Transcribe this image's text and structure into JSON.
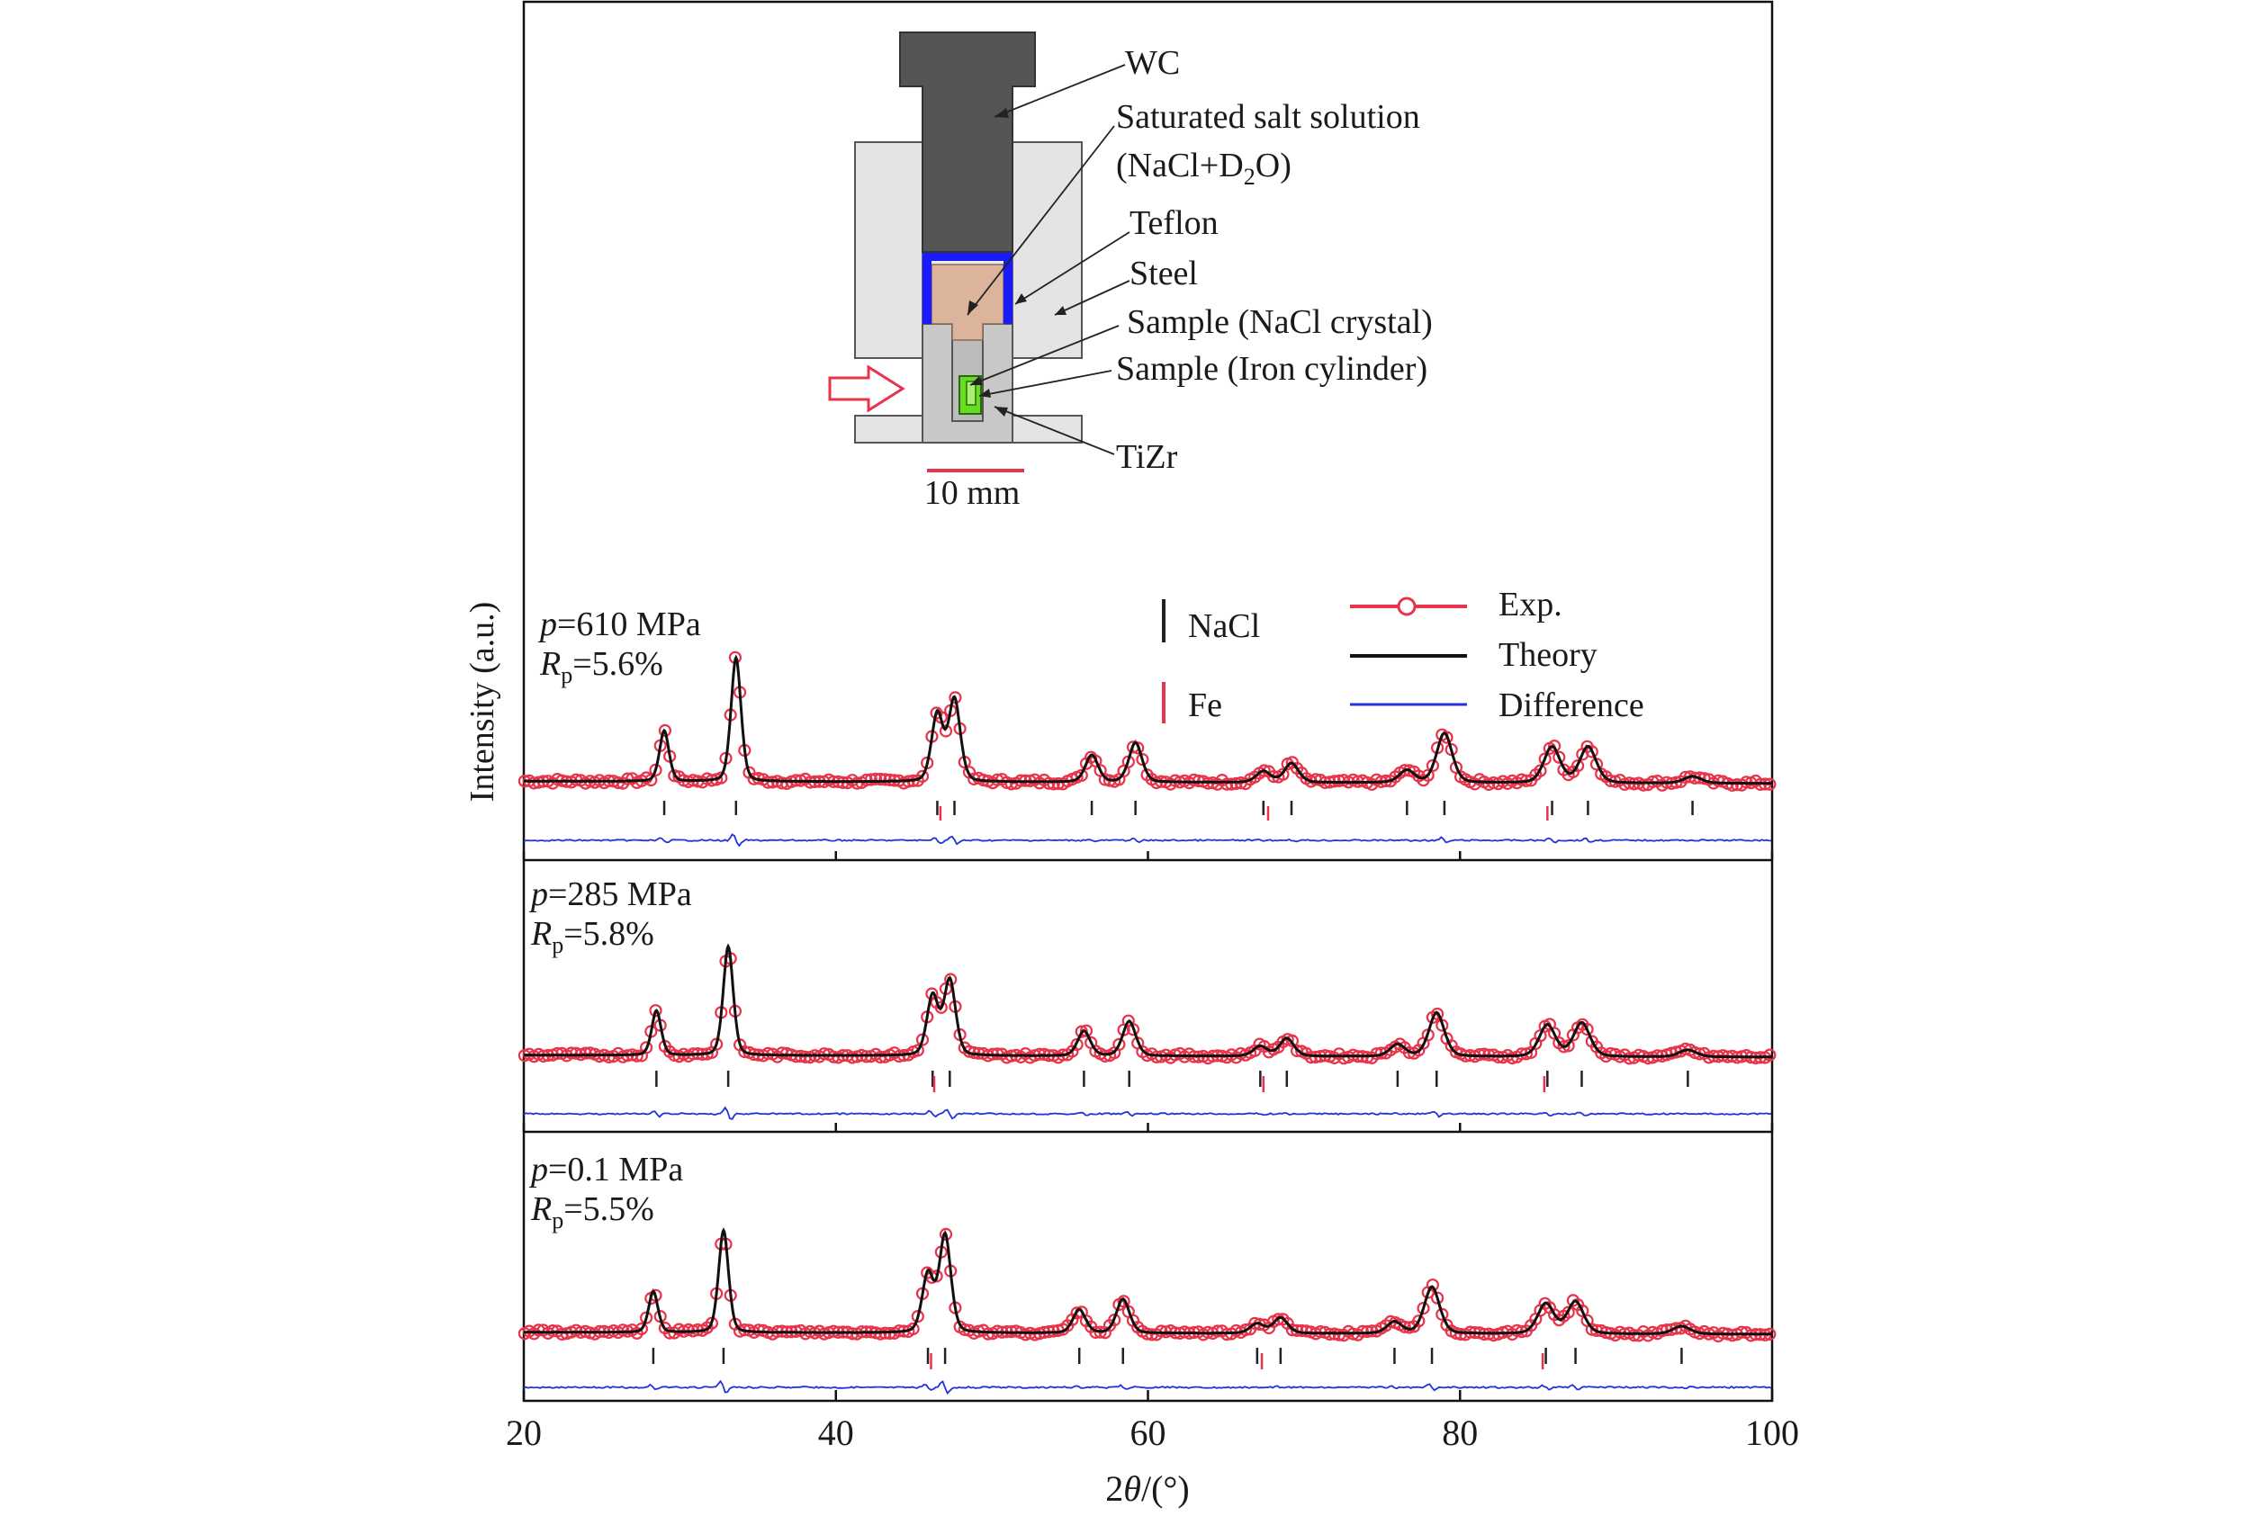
{
  "apparatus": {
    "labels": {
      "wc": "WC",
      "solution_line1": "Saturated salt solution",
      "solution_line2_prefix": "(NaCl+D",
      "solution_line2_sub": "2",
      "solution_line2_suffix": "O)",
      "teflon": "Teflon",
      "steel": "Steel",
      "sample_crystal": "Sample (NaCl crystal)",
      "sample_cylinder": "Sample (Iron cylinder)",
      "tizr": "TiZr",
      "scale": "10 mm"
    },
    "colors": {
      "wc": "#555555",
      "steel": "#e4e4e4",
      "tizr": "#c8c8c8",
      "teflon": "#1a1aff",
      "solution": "#dcb49c",
      "sample": "#66dd22",
      "arrow": "#e8344a",
      "scalebar": "#e8344a"
    }
  },
  "legend": {
    "nacl": "NaCl",
    "fe": "Fe",
    "exp": "Exp.",
    "theory": "Theory",
    "difference": "Difference"
  },
  "colors": {
    "exp": "#e8344a",
    "theory": "#111111",
    "difference": "#2233dd",
    "nacl_tick": "#222222",
    "fe_tick": "#e8344a"
  },
  "chart_data": {
    "type": "line",
    "xlabel": "2θ/(°)",
    "ylabel": "Intensity (a.u.)",
    "xlim": [
      20,
      100
    ],
    "xticks": [
      20,
      40,
      60,
      80,
      100
    ],
    "grid": false,
    "legend_placement": "top-right",
    "panels": [
      {
        "pressure_label": "=610 MPa",
        "rp_label": "=5.6%",
        "background": [
          0.3,
          0.1
        ],
        "nacl_peaks": [
          [
            29.0,
            4.5
          ],
          [
            33.6,
            11.0
          ],
          [
            46.5,
            6.0
          ],
          [
            47.6,
            7.3
          ],
          [
            56.4,
            2.4
          ],
          [
            59.2,
            3.5
          ],
          [
            67.4,
            1.0
          ],
          [
            69.2,
            1.7
          ],
          [
            76.6,
            1.1
          ],
          [
            79.0,
            4.4
          ],
          [
            85.9,
            3.2
          ],
          [
            88.2,
            3.2
          ],
          [
            94.9,
            0.6
          ]
        ],
        "fe_peaks": [
          46.7,
          67.7,
          85.6
        ]
      },
      {
        "pressure_label": "=285 MPa",
        "rp_label": "=5.8%",
        "background": [
          0.3,
          0.1
        ],
        "nacl_peaks": [
          [
            28.5,
            4.5
          ],
          [
            33.1,
            11.0
          ],
          [
            46.2,
            6.0
          ],
          [
            47.3,
            7.6
          ],
          [
            55.9,
            2.5
          ],
          [
            58.8,
            3.5
          ],
          [
            67.2,
            1.0
          ],
          [
            68.9,
            1.8
          ],
          [
            76.0,
            1.2
          ],
          [
            78.5,
            4.4
          ],
          [
            85.6,
            3.2
          ],
          [
            87.8,
            3.4
          ],
          [
            94.6,
            0.7
          ]
        ],
        "fe_peaks": [
          46.3,
          67.4,
          85.4
        ]
      },
      {
        "pressure_label": "=0.1 MPa",
        "rp_label": "=5.5%",
        "background": [
          0.3,
          0.1
        ],
        "nacl_peaks": [
          [
            28.3,
            4.2
          ],
          [
            32.8,
            10.5
          ],
          [
            45.9,
            6.0
          ],
          [
            47.0,
            10.0
          ],
          [
            55.6,
            2.4
          ],
          [
            58.4,
            3.5
          ],
          [
            67.0,
            1.0
          ],
          [
            68.5,
            1.6
          ],
          [
            75.8,
            1.2
          ],
          [
            78.2,
            4.8
          ],
          [
            85.5,
            3.1
          ],
          [
            87.4,
            3.3
          ],
          [
            94.2,
            0.8
          ]
        ],
        "fe_peaks": [
          46.1,
          67.3,
          85.3
        ]
      }
    ]
  }
}
